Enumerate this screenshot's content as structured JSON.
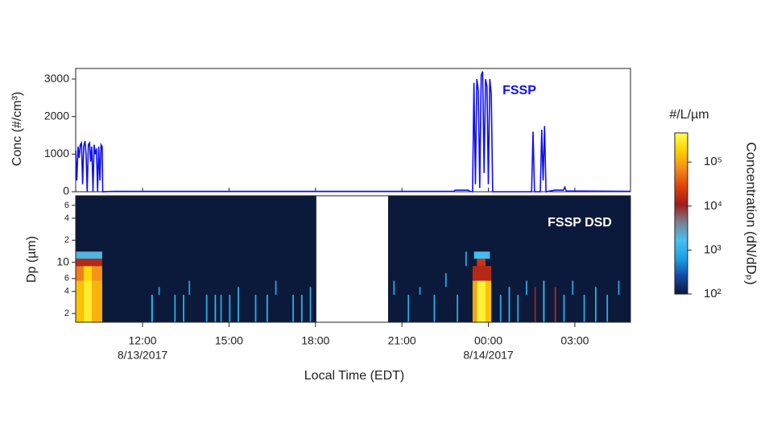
{
  "chart_data": [
    {
      "type": "line",
      "ylabel": "Conc (#/cm³)",
      "annotation": "FSSP",
      "color": "#1010ee",
      "xlim": [
        9.68,
        28.93
      ],
      "xticks": [
        12,
        15,
        18,
        21,
        24,
        27
      ],
      "ylim": [
        0,
        3280
      ],
      "yticks": [
        0,
        1000,
        2000,
        3000
      ],
      "series": [
        {
          "name": "FSSP",
          "x": [
            9.68,
            9.72,
            9.76,
            9.8,
            9.84,
            9.88,
            9.92,
            9.96,
            10.0,
            10.04,
            10.08,
            10.12,
            10.16,
            10.2,
            10.24,
            10.28,
            10.32,
            10.36,
            10.4,
            10.44,
            10.48,
            10.52,
            10.56,
            10.6,
            10.62,
            11,
            22.8,
            22.85,
            23.3,
            23.35,
            23.45,
            23.5,
            23.55,
            23.6,
            23.65,
            23.7,
            23.75,
            23.8,
            23.85,
            23.9,
            23.95,
            24.0,
            24.05,
            24.1,
            24.15,
            25.5,
            25.55,
            25.6,
            25.8,
            25.85,
            25.9,
            25.95,
            26.0,
            26.3,
            26.6,
            26.65,
            26.7,
            28.93
          ],
          "values": [
            1100,
            300,
            1200,
            900,
            1250,
            1300,
            200,
            1200,
            1350,
            1000,
            0,
            1250,
            1300,
            800,
            1200,
            0,
            1250,
            1000,
            1150,
            0,
            1200,
            300,
            1250,
            1200,
            0,
            10,
            10,
            40,
            40,
            10,
            0,
            2900,
            200,
            3000,
            2700,
            100,
            3100,
            3200,
            500,
            3000,
            2800,
            200,
            3000,
            2600,
            0,
            0,
            1600,
            0,
            0,
            1650,
            300,
            1750,
            0,
            40,
            40,
            120,
            20,
            10
          ]
        }
      ]
    },
    {
      "type": "heatmap",
      "annotation": "FSSP DSD",
      "ylabel": "Dp (µm)",
      "xlabel": "Local Time (EDT)",
      "xlim": [
        9.68,
        28.93
      ],
      "xticks": [
        {
          "value": 12,
          "label": "12:00"
        },
        {
          "value": 15,
          "label": "15:00"
        },
        {
          "value": 18,
          "label": "18:00"
        },
        {
          "value": 21,
          "label": "21:00"
        },
        {
          "value": 24,
          "label": "00:00"
        },
        {
          "value": 27,
          "label": "03:00"
        }
      ],
      "xtick_dates": [
        {
          "value": 12,
          "label": "8/13/2017"
        },
        {
          "value": 24,
          "label": "8/14/2017"
        }
      ],
      "ylim": [
        1.52,
        81
      ],
      "log_y": true,
      "yticks": [
        2,
        4,
        6,
        10,
        {
          "value": 20,
          "label": "2"
        },
        {
          "value": 40,
          "label": "4"
        },
        {
          "value": 60,
          "label": "6"
        }
      ],
      "coverage": [
        [
          9.68,
          18.03
        ],
        [
          20.52,
          28.93
        ]
      ],
      "dp_bins": [
        1.52,
        2.6,
        3.6,
        4.6,
        5.6,
        7.1,
        8.9,
        11.2,
        14
      ],
      "cells": [
        [
          9.68,
          9.95,
          0,
          4,
          150000
        ],
        [
          9.95,
          10.25,
          0,
          4,
          300000
        ],
        [
          10.25,
          10.6,
          0,
          4,
          120000
        ],
        [
          9.68,
          9.95,
          4,
          6,
          60000
        ],
        [
          9.95,
          10.25,
          4,
          6,
          200000
        ],
        [
          10.25,
          10.6,
          4,
          6,
          80000
        ],
        [
          9.68,
          10.6,
          6,
          7,
          15000
        ],
        [
          9.68,
          10.6,
          7,
          8,
          2000
        ],
        [
          12.3,
          12.36,
          0,
          2,
          900
        ],
        [
          12.55,
          12.6,
          2,
          3,
          700
        ],
        [
          13.1,
          13.15,
          0,
          2,
          900
        ],
        [
          13.4,
          13.45,
          0,
          2,
          1000
        ],
        [
          13.6,
          13.65,
          2,
          4,
          700
        ],
        [
          14.2,
          14.25,
          0,
          2,
          900
        ],
        [
          14.5,
          14.55,
          0,
          2,
          1100
        ],
        [
          14.7,
          14.75,
          0,
          2,
          800
        ],
        [
          15.0,
          15.05,
          0,
          2,
          900
        ],
        [
          15.3,
          15.35,
          0,
          3,
          1000
        ],
        [
          15.9,
          15.95,
          0,
          2,
          900
        ],
        [
          16.3,
          16.35,
          0,
          2,
          1100
        ],
        [
          16.6,
          16.65,
          2,
          4,
          700
        ],
        [
          17.2,
          17.25,
          0,
          2,
          900
        ],
        [
          17.5,
          17.55,
          0,
          2,
          1000
        ],
        [
          17.8,
          17.85,
          0,
          3,
          900
        ],
        [
          20.7,
          20.75,
          2,
          4,
          800
        ],
        [
          21.2,
          21.25,
          0,
          2,
          900
        ],
        [
          21.6,
          21.65,
          2,
          3,
          700
        ],
        [
          22.1,
          22.15,
          0,
          2,
          1000
        ],
        [
          22.5,
          22.55,
          3,
          5,
          800
        ],
        [
          22.9,
          22.95,
          0,
          2,
          900
        ],
        [
          23.2,
          23.25,
          6,
          8,
          900
        ],
        [
          23.45,
          23.6,
          0,
          4,
          100000
        ],
        [
          23.6,
          23.9,
          0,
          4,
          350000
        ],
        [
          23.9,
          24.1,
          0,
          4,
          150000
        ],
        [
          23.45,
          24.1,
          4,
          6,
          15000
        ],
        [
          23.6,
          23.9,
          6,
          7,
          20000
        ],
        [
          23.5,
          24.05,
          7,
          8,
          1500
        ],
        [
          24.4,
          24.45,
          0,
          2,
          900
        ],
        [
          24.7,
          24.75,
          0,
          3,
          1100
        ],
        [
          25.0,
          25.05,
          0,
          2,
          900
        ],
        [
          25.3,
          25.35,
          2,
          4,
          800
        ],
        [
          25.6,
          25.65,
          0,
          3,
          12000
        ],
        [
          25.9,
          25.95,
          0,
          4,
          1500
        ],
        [
          26.3,
          26.35,
          0,
          3,
          15000
        ],
        [
          26.6,
          26.65,
          0,
          2,
          1000
        ],
        [
          26.9,
          26.95,
          2,
          4,
          800
        ],
        [
          27.3,
          27.35,
          0,
          2,
          900
        ],
        [
          27.7,
          27.75,
          0,
          3,
          1000
        ],
        [
          28.1,
          28.15,
          0,
          2,
          900
        ],
        [
          28.5,
          28.55,
          2,
          4,
          800
        ]
      ],
      "colorbar_title": "#/L/µm",
      "colorbar_label": "Concentration (dN/dDₚ)",
      "clim": [
        100,
        460000
      ],
      "cticks": [
        {
          "value": 100,
          "label": "10²"
        },
        {
          "value": 1000,
          "label": "10³"
        },
        {
          "value": 10000,
          "label": "10⁴"
        },
        {
          "value": 100000,
          "label": "10⁵"
        }
      ],
      "colormap": [
        "#0b1a3a",
        "#1448a8",
        "#1ea0e6",
        "#48c0f0",
        "#7a8090",
        "#a01c1c",
        "#e0400c",
        "#f48a1c",
        "#ffd000",
        "#ffff50"
      ]
    }
  ]
}
